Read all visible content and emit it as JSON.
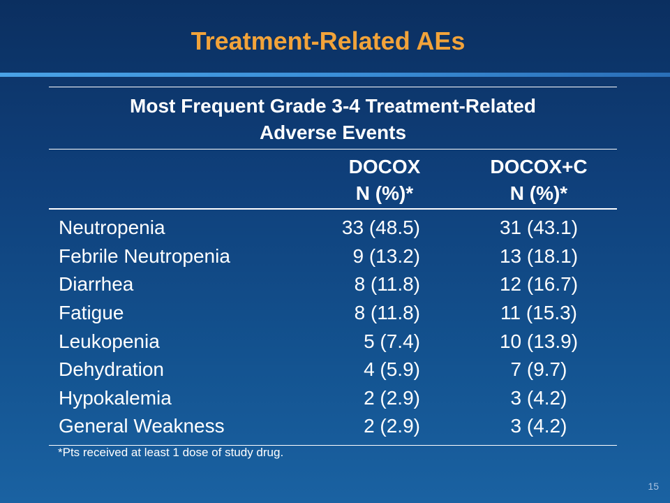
{
  "slide": {
    "title": "Treatment-Related AEs",
    "footnote": "*Pts received at least 1 dose of study drug.",
    "page_number": "15"
  },
  "table": {
    "caption_line1": "Most Frequent Grade 3-4 Treatment-Related",
    "caption_line2": "Adverse Events",
    "columns": [
      {
        "name": "DOCOX",
        "sub": "N (%)*"
      },
      {
        "name": "DOCOX+C",
        "sub": "N (%)*"
      }
    ],
    "rows": [
      {
        "event": "Neutropenia",
        "docox": "33 (48.5)",
        "docoxc": "31 (43.1)"
      },
      {
        "event": "Febrile Neutropenia",
        "docox": "9 (13.2)",
        "docoxc": "13 (18.1)"
      },
      {
        "event": "Diarrhea",
        "docox": "8 (11.8)",
        "docoxc": "12 (16.7)"
      },
      {
        "event": "Fatigue",
        "docox": "8 (11.8)",
        "docoxc": "11 (15.3)"
      },
      {
        "event": "Leukopenia",
        "docox": "5 (7.4)",
        "docoxc": "10 (13.9)"
      },
      {
        "event": "Dehydration",
        "docox": "4 (5.9)",
        "docoxc": "7 (9.7)"
      },
      {
        "event": "Hypokalemia",
        "docox": "2 (2.9)",
        "docoxc": "3 (4.2)"
      },
      {
        "event": "General Weakness",
        "docox": "2 (2.9)",
        "docoxc": "3 (4.2)"
      }
    ]
  },
  "colors": {
    "title": "#f2a33a",
    "background_top": "#0b2f60",
    "background_bottom": "#1a62a2",
    "accent_rule": "#4aa3e6"
  }
}
